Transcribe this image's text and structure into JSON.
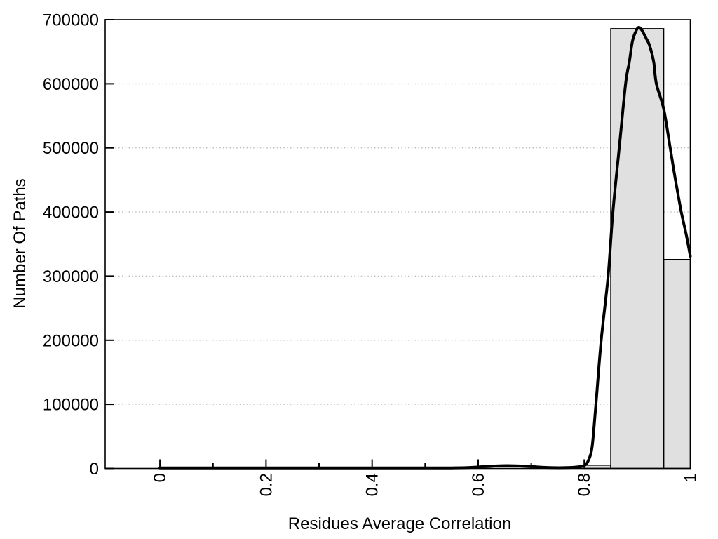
{
  "chart_data": {
    "type": "bar",
    "subtype": "histogram with smoothed density curve overlay",
    "title": "",
    "xlabel": "Residues Average Correlation",
    "ylabel": "Number Of Paths",
    "xlim": [
      -0.1033,
      1.0
    ],
    "ylim": [
      0,
      700000
    ],
    "grid": "horizontal dotted gridlines at y major ticks",
    "legend": "none",
    "x_ticks": {
      "major": [
        0,
        0.2,
        0.4,
        0.6,
        0.8,
        1
      ],
      "major_labels": [
        "0",
        "0.2",
        "0.4",
        "0.6",
        "0.8",
        "1"
      ],
      "minor": [
        0.1,
        0.3,
        0.5,
        0.7,
        0.9
      ],
      "label_rotation_deg": -90
    },
    "y_ticks": {
      "major": [
        0,
        100000,
        200000,
        300000,
        400000,
        500000,
        600000,
        700000
      ],
      "major_labels": [
        "0",
        "100000",
        "200000",
        "300000",
        "400000",
        "500000",
        "600000",
        "700000"
      ]
    },
    "histogram_bars": [
      {
        "x0": 0.8,
        "x1": 0.85,
        "value": 5000
      },
      {
        "x0": 0.85,
        "x1": 0.95,
        "value": 686000
      },
      {
        "x0": 0.95,
        "x1": 1.0,
        "value": 326000
      }
    ],
    "density_curve": {
      "name": "smoothed-distribution-curve",
      "points": [
        [
          0.0,
          800
        ],
        [
          0.05,
          800
        ],
        [
          0.1,
          800
        ],
        [
          0.15,
          800
        ],
        [
          0.2,
          800
        ],
        [
          0.25,
          800
        ],
        [
          0.3,
          800
        ],
        [
          0.35,
          800
        ],
        [
          0.4,
          800
        ],
        [
          0.45,
          800
        ],
        [
          0.5,
          800
        ],
        [
          0.55,
          900
        ],
        [
          0.58,
          1300
        ],
        [
          0.61,
          2800
        ],
        [
          0.64,
          4200
        ],
        [
          0.67,
          4200
        ],
        [
          0.7,
          3000
        ],
        [
          0.73,
          1500
        ],
        [
          0.76,
          1200
        ],
        [
          0.785,
          2200
        ],
        [
          0.8,
          4500
        ],
        [
          0.808,
          13000
        ],
        [
          0.815,
          35000
        ],
        [
          0.822,
          100000
        ],
        [
          0.832,
          200000
        ],
        [
          0.845,
          300000
        ],
        [
          0.854,
          400000
        ],
        [
          0.866,
          500000
        ],
        [
          0.878,
          600000
        ],
        [
          0.885,
          634000
        ],
        [
          0.891,
          667000
        ],
        [
          0.898,
          683000
        ],
        [
          0.903,
          688000
        ],
        [
          0.909,
          683000
        ],
        [
          0.916,
          672000
        ],
        [
          0.923,
          660000
        ],
        [
          0.931,
          634000
        ],
        [
          0.936,
          600000
        ],
        [
          0.95,
          560000
        ],
        [
          0.962,
          500000
        ],
        [
          0.972,
          450000
        ],
        [
          0.983,
          400000
        ],
        [
          0.993,
          362000
        ],
        [
          1.0,
          331000
        ]
      ]
    },
    "colors": {
      "background": "#ffffff",
      "bar_fill": "#e0e0e0",
      "bar_stroke": "#000000",
      "curve": "#000000",
      "grid": "#b8b8b8",
      "axis": "#000000",
      "text": "#000000"
    }
  }
}
